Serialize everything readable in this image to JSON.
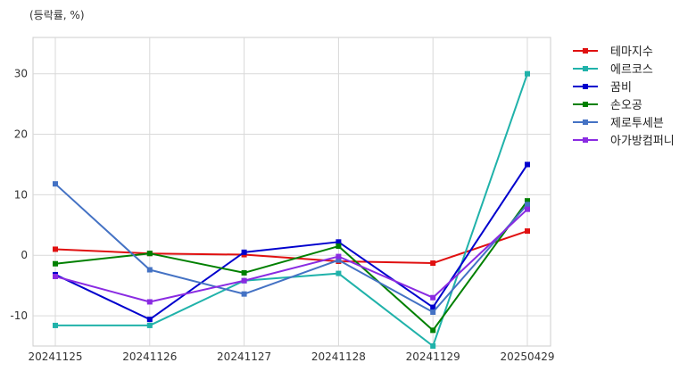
{
  "chart_data": {
    "type": "line",
    "ylabel": "(등락률, %)",
    "categories": [
      "20241125",
      "20241126",
      "20241127",
      "20241128",
      "20241129",
      "20250429"
    ],
    "ylim": [
      -15,
      36
    ],
    "yticks": [
      -10,
      0,
      10,
      20,
      30
    ],
    "grid": true,
    "legend_position": "right",
    "series": [
      {
        "name": "테마지수",
        "color": "#e01010",
        "values": [
          1.0,
          0.3,
          0.1,
          -1.0,
          -1.3,
          4.0
        ]
      },
      {
        "name": "에르코스",
        "color": "#20b2aa",
        "values": [
          -11.6,
          -11.6,
          -4.2,
          -3.0,
          -15.0,
          30.0
        ]
      },
      {
        "name": "꿈비",
        "color": "#0000cd",
        "values": [
          -3.2,
          -10.6,
          0.5,
          2.2,
          -8.6,
          15.0
        ]
      },
      {
        "name": "손오공",
        "color": "#008000",
        "values": [
          -1.4,
          0.3,
          -2.9,
          1.5,
          -12.4,
          9.0
        ]
      },
      {
        "name": "제로투세븐",
        "color": "#4472c4",
        "values": [
          11.8,
          -2.4,
          -6.4,
          -0.8,
          -9.4,
          8.4
        ]
      },
      {
        "name": "아가방컴퍼니",
        "color": "#8a2be2",
        "values": [
          -3.5,
          -7.7,
          -4.2,
          -0.2,
          -7.0,
          7.6
        ]
      }
    ]
  }
}
